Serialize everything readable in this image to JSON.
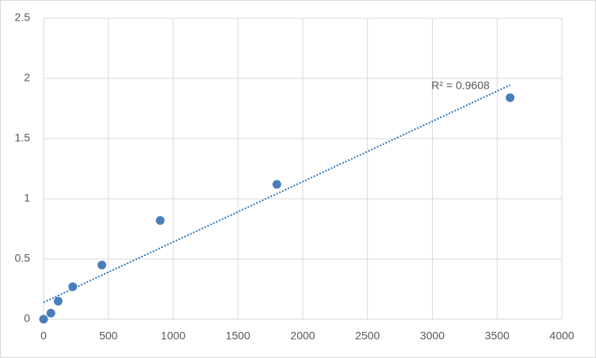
{
  "chart_data": {
    "type": "scatter",
    "x": [
      0,
      56.25,
      112.5,
      225,
      450,
      900,
      1800,
      3600
    ],
    "values": [
      0,
      0.05,
      0.15,
      0.27,
      0.45,
      0.82,
      1.12,
      1.84
    ],
    "color": "#4a7ebb",
    "trendline": "linear",
    "trendline_color": "#2e75b6",
    "annotation": "R² = 0.9608",
    "xlim": [
      0,
      4000
    ],
    "xticks": [
      0,
      500,
      1000,
      1500,
      2000,
      2500,
      3000,
      3500,
      4000
    ],
    "ylim": [
      0,
      2.5
    ],
    "yticks": [
      0,
      0.5,
      1,
      1.5,
      2,
      2.5
    ],
    "grid": true
  }
}
